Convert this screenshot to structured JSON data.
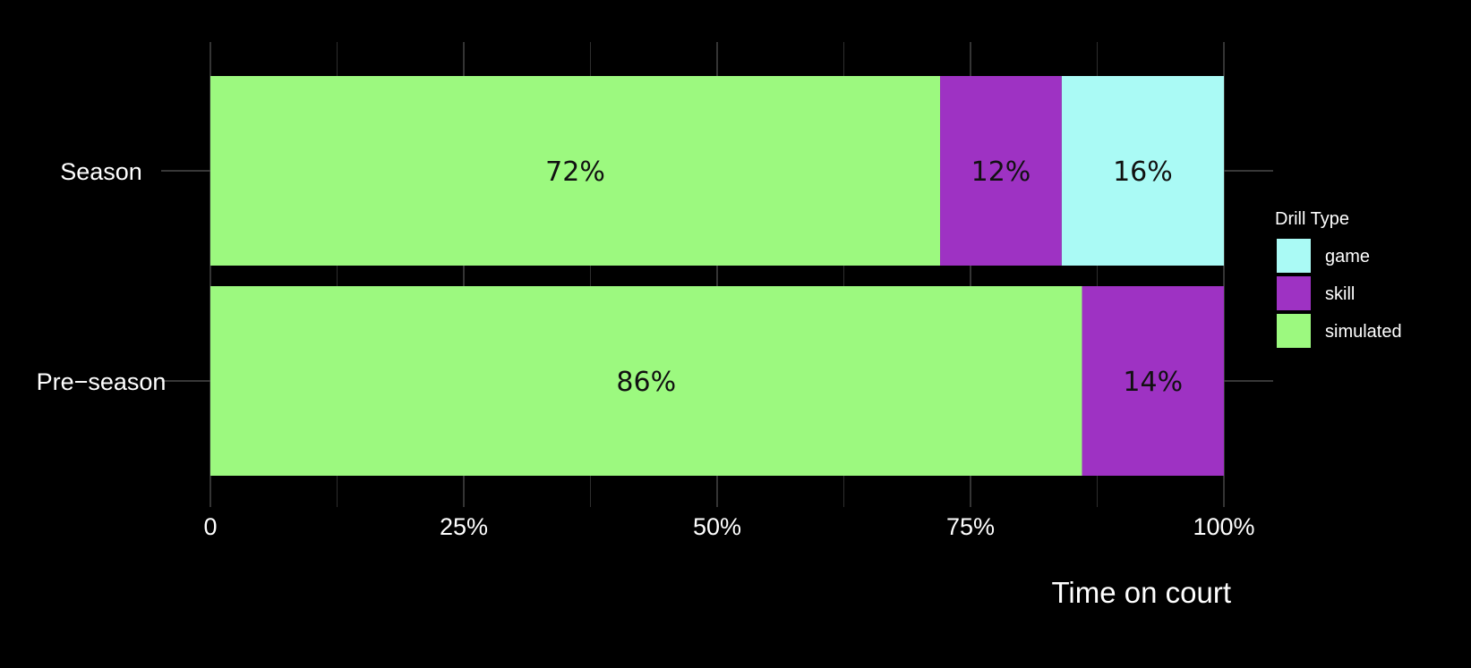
{
  "chart_data": {
    "type": "bar",
    "orientation": "horizontal",
    "stacked": true,
    "categories": [
      "Season",
      "Pre−season"
    ],
    "series": [
      {
        "name": "simulated",
        "color": "#9CF97F",
        "values": [
          72,
          86
        ],
        "labels": [
          "72%",
          "86%"
        ]
      },
      {
        "name": "skill",
        "color": "#9E32C3",
        "values": [
          12,
          14
        ],
        "labels": [
          "12%",
          "14%"
        ]
      },
      {
        "name": "game",
        "color": "#AAFAF5",
        "values": [
          16,
          0
        ],
        "labels": [
          "16%",
          ""
        ]
      }
    ],
    "xlim": [
      0,
      100
    ],
    "xticks": [
      {
        "value": 0,
        "label": "0"
      },
      {
        "value": 25,
        "label": "25%"
      },
      {
        "value": 50,
        "label": "50%"
      },
      {
        "value": 75,
        "label": "75%"
      },
      {
        "value": 100,
        "label": "100%"
      }
    ],
    "xlabel": "Time on court",
    "ylabel": "",
    "title": "",
    "legend": {
      "title": "Drill Type",
      "position": "right",
      "items": [
        {
          "label": "game",
          "color": "#AAFAF5"
        },
        {
          "label": "skill",
          "color": "#9E32C3"
        },
        {
          "label": "simulated",
          "color": "#9CF97F"
        }
      ]
    },
    "grid": true,
    "background": "#000000",
    "grid_color": "#4a4a4a"
  }
}
